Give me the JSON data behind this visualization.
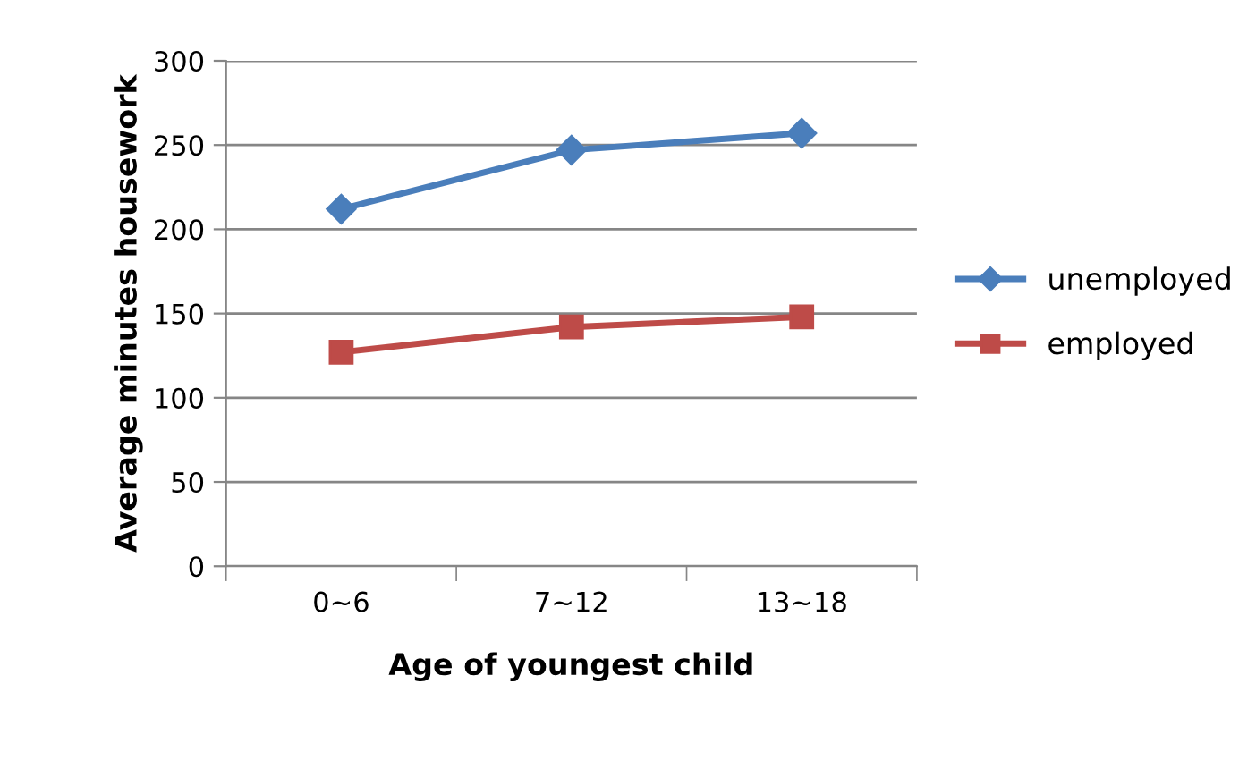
{
  "chart_data": {
    "type": "line",
    "xlabel": "Age of youngest child",
    "ylabel": "Average minutes housework",
    "categories": [
      "0~6",
      "7~12",
      "13~18"
    ],
    "series": [
      {
        "name": "unemployed",
        "color": "#4a7ebb",
        "values": [
          212,
          247,
          257
        ],
        "marker": "diamond"
      },
      {
        "name": "employed",
        "color": "#be4b48",
        "values": [
          127,
          142,
          148
        ],
        "marker": "square"
      }
    ],
    "ylim": [
      0,
      300
    ],
    "yticks": [
      0,
      50,
      100,
      150,
      200,
      250,
      300
    ],
    "grid": "y",
    "legend": "right",
    "line_style": "solid"
  }
}
